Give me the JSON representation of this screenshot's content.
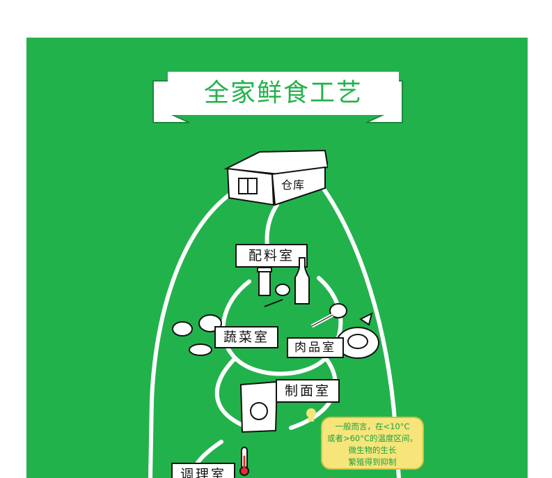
{
  "banner": {
    "title": "全家鲜食工艺"
  },
  "rooms": {
    "warehouse": "仓库",
    "ingredients": "配料室",
    "vegetables": "蔬菜室",
    "meat": "肉品室",
    "noodle": "制面室",
    "cooking": "调理室"
  },
  "tip": {
    "line1": "一般而言，在<10°C",
    "line2": "或者>60°C的温度区间，",
    "line3": "微生物的生长",
    "line4": "繁殖得到抑制"
  },
  "colors": {
    "background": "#22b24c",
    "banner": "#ffffff",
    "bubble": "#f6e57a"
  }
}
